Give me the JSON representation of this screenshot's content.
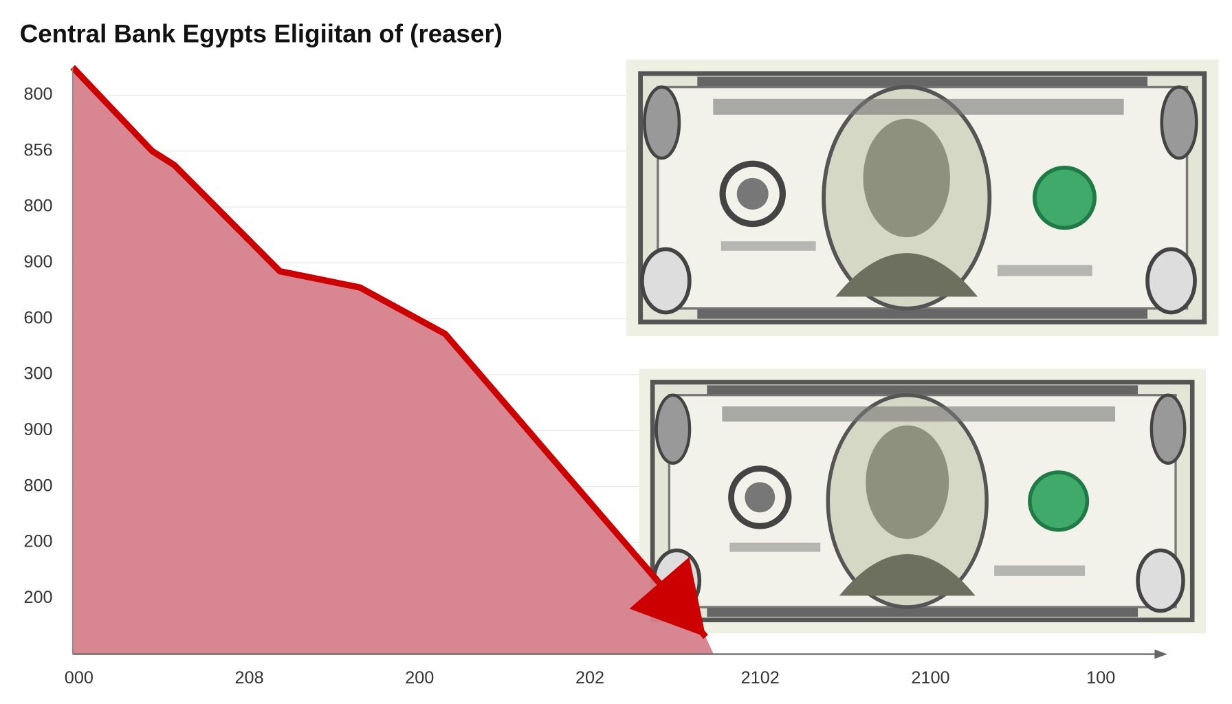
{
  "chart_data": {
    "type": "area",
    "title": "Central Bank Egypts Eligiitan of (reaser)",
    "x": [
      -0.037,
      0.43,
      0.56,
      1.18,
      1.65,
      2.15,
      3.68
    ],
    "series": [
      {
        "color": "#cc0000",
        "fill": "#d6808c",
        "values": [
          10.5,
          9.0,
          8.75,
          6.85,
          6.56,
          5.73,
          0.31
        ]
      }
    ],
    "xlim": [
      -0.037,
      6.39
    ],
    "xticks": [
      {
        "value": 0,
        "label": "000"
      },
      {
        "value": 1,
        "label": "208"
      },
      {
        "value": 2,
        "label": "200"
      },
      {
        "value": 3,
        "label": "202"
      },
      {
        "value": 4,
        "label": "2102"
      },
      {
        "value": 5,
        "label": "2100"
      },
      {
        "value": 6,
        "label": "100"
      }
    ],
    "ylim": [
      0,
      10.5
    ],
    "yticks": [
      {
        "value": 10,
        "label": "800"
      },
      {
        "value": 9,
        "label": "856"
      },
      {
        "value": 8,
        "label": "800"
      },
      {
        "value": 7,
        "label": "900"
      },
      {
        "value": 6,
        "label": "600"
      },
      {
        "value": 5,
        "label": "300"
      },
      {
        "value": 4,
        "label": "900"
      },
      {
        "value": 3,
        "label": "800"
      },
      {
        "value": 2,
        "label": "200"
      },
      {
        "value": 1,
        "label": "200"
      }
    ],
    "grid": true
  }
}
